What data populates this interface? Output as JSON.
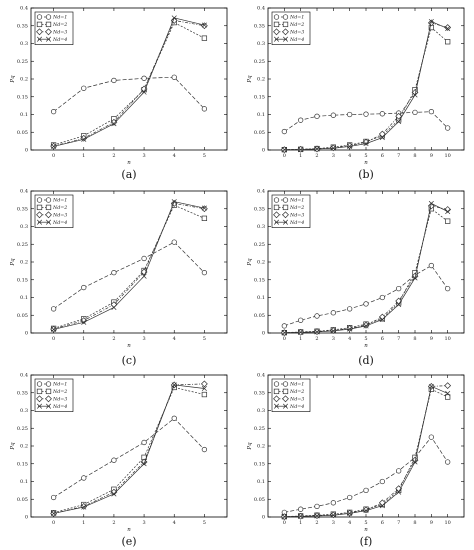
{
  "chart_data": [
    {
      "id": "a",
      "caption": "(a)",
      "type": "line",
      "xlabel": "n",
      "ylabel": "Pq",
      "x": [
        0,
        1,
        2,
        3,
        4,
        5
      ],
      "xticks": [
        "0",
        "1",
        "2",
        "3",
        "4",
        "5"
      ],
      "ylim": [
        0,
        0.4
      ],
      "yticks": [
        "0",
        "0.05",
        "0.1",
        "0.15",
        "0.2",
        "0.25",
        "0.3",
        "0.35",
        "0.4"
      ],
      "legend_position": "top-left",
      "series": [
        {
          "name": "Nd=1",
          "marker": "circle",
          "dash": "4,2",
          "values": [
            0.108,
            0.174,
            0.196,
            0.202,
            0.205,
            0.116
          ]
        },
        {
          "name": "Nd=2",
          "marker": "square",
          "dash": "2,1.5",
          "values": [
            0.014,
            0.04,
            0.088,
            0.17,
            0.359,
            0.315
          ]
        },
        {
          "name": "Nd=3",
          "marker": "diamond",
          "dash": "3,1.5,1,1.5",
          "values": [
            0.011,
            0.033,
            0.078,
            0.172,
            0.365,
            0.35
          ]
        },
        {
          "name": "Nd=4",
          "marker": "x",
          "dash": "",
          "values": [
            0.01,
            0.03,
            0.074,
            0.163,
            0.372,
            0.352
          ]
        }
      ]
    },
    {
      "id": "b",
      "caption": "(b)",
      "type": "line",
      "xlabel": "n",
      "ylabel": "Pq",
      "x": [
        0,
        1,
        2,
        3,
        4,
        5,
        6,
        7,
        8,
        9,
        10
      ],
      "xticks": [
        "0",
        "1",
        "2",
        "3",
        "4",
        "5",
        "6",
        "7",
        "8",
        "9",
        "10"
      ],
      "ylim": [
        0,
        0.4
      ],
      "yticks": [
        "0",
        "0.05",
        "0.1",
        "0.15",
        "0.2",
        "0.25",
        "0.3",
        "0.35",
        "0.4"
      ],
      "legend_position": "top-left",
      "series": [
        {
          "name": "Nd=1",
          "marker": "circle",
          "dash": "4,2",
          "values": [
            0.052,
            0.084,
            0.095,
            0.098,
            0.1,
            0.101,
            0.102,
            0.104,
            0.106,
            0.108,
            0.062
          ]
        },
        {
          "name": "Nd=2",
          "marker": "square",
          "dash": "2,1.5",
          "values": [
            0.001,
            0.002,
            0.004,
            0.008,
            0.014,
            0.024,
            0.04,
            0.085,
            0.17,
            0.345,
            0.305
          ]
        },
        {
          "name": "Nd=3",
          "marker": "diamond",
          "dash": "3,1.5,1,1.5",
          "values": [
            0.001,
            0.002,
            0.003,
            0.006,
            0.012,
            0.022,
            0.045,
            0.095,
            0.162,
            0.358,
            0.345
          ]
        },
        {
          "name": "Nd=4",
          "marker": "x",
          "dash": "",
          "values": [
            0.001,
            0.001,
            0.003,
            0.005,
            0.01,
            0.018,
            0.035,
            0.08,
            0.155,
            0.362,
            0.342
          ]
        }
      ]
    },
    {
      "id": "c",
      "caption": "(c)",
      "type": "line",
      "xlabel": "n",
      "ylabel": "Pq",
      "x": [
        0,
        1,
        2,
        3,
        4,
        5
      ],
      "xticks": [
        "0",
        "1",
        "2",
        "3",
        "4",
        "5"
      ],
      "ylim": [
        0,
        0.4
      ],
      "yticks": [
        "0",
        "0.05",
        "0.1",
        "0.15",
        "0.2",
        "0.25",
        "0.3",
        "0.35",
        "0.4"
      ],
      "legend_position": "top-left",
      "series": [
        {
          "name": "Nd=1",
          "marker": "circle",
          "dash": "4,2",
          "values": [
            0.068,
            0.128,
            0.17,
            0.21,
            0.256,
            0.17
          ]
        },
        {
          "name": "Nd=2",
          "marker": "square",
          "dash": "2,1.5",
          "values": [
            0.013,
            0.04,
            0.087,
            0.176,
            0.36,
            0.323
          ]
        },
        {
          "name": "Nd=3",
          "marker": "diamond",
          "dash": "3,1.5,1,1.5",
          "values": [
            0.011,
            0.035,
            0.08,
            0.172,
            0.365,
            0.35
          ]
        },
        {
          "name": "Nd=4",
          "marker": "x",
          "dash": "",
          "values": [
            0.01,
            0.03,
            0.072,
            0.16,
            0.37,
            0.352
          ]
        }
      ]
    },
    {
      "id": "d",
      "caption": "(d)",
      "type": "line",
      "xlabel": "n",
      "ylabel": "Pq",
      "x": [
        0,
        1,
        2,
        3,
        4,
        5,
        6,
        7,
        8,
        9,
        10
      ],
      "xticks": [
        "0",
        "1",
        "2",
        "3",
        "4",
        "5",
        "6",
        "7",
        "8",
        "9",
        "10"
      ],
      "ylim": [
        0,
        0.4
      ],
      "yticks": [
        "0",
        "0.05",
        "0.1",
        "0.15",
        "0.2",
        "0.25",
        "0.3",
        "0.35",
        "0.4"
      ],
      "legend_position": "top-left",
      "series": [
        {
          "name": "Nd=1",
          "marker": "circle",
          "dash": "4,2",
          "values": [
            0.02,
            0.036,
            0.048,
            0.057,
            0.068,
            0.082,
            0.1,
            0.125,
            0.163,
            0.19,
            0.125
          ]
        },
        {
          "name": "Nd=2",
          "marker": "square",
          "dash": "2,1.5",
          "values": [
            0.001,
            0.003,
            0.005,
            0.009,
            0.015,
            0.025,
            0.04,
            0.085,
            0.17,
            0.35,
            0.315
          ]
        },
        {
          "name": "Nd=3",
          "marker": "diamond",
          "dash": "3,1.5,1,1.5",
          "values": [
            0.001,
            0.002,
            0.004,
            0.007,
            0.013,
            0.022,
            0.045,
            0.09,
            0.16,
            0.358,
            0.348
          ]
        },
        {
          "name": "Nd=4",
          "marker": "x",
          "dash": "",
          "values": [
            0.001,
            0.002,
            0.003,
            0.006,
            0.011,
            0.02,
            0.038,
            0.08,
            0.155,
            0.365,
            0.342
          ]
        }
      ]
    },
    {
      "id": "e",
      "caption": "(e)",
      "type": "line",
      "xlabel": "n",
      "ylabel": "Pq",
      "x": [
        0,
        1,
        2,
        3,
        4,
        5
      ],
      "xticks": [
        "0",
        "1",
        "2",
        "3",
        "4",
        "5"
      ],
      "ylim": [
        0,
        0.4
      ],
      "yticks": [
        "0",
        "0.05",
        "0.1",
        "0.15",
        "0.2",
        "0.25",
        "0.3",
        "0.35",
        "0.4"
      ],
      "legend_position": "top-left",
      "series": [
        {
          "name": "Nd=1",
          "marker": "circle",
          "dash": "4,2",
          "values": [
            0.055,
            0.11,
            0.16,
            0.21,
            0.278,
            0.19
          ]
        },
        {
          "name": "Nd=2",
          "marker": "square",
          "dash": "2,1.5",
          "values": [
            0.012,
            0.035,
            0.078,
            0.168,
            0.365,
            0.345
          ]
        },
        {
          "name": "Nd=3",
          "marker": "diamond",
          "dash": "3,1.5,1,1.5",
          "values": [
            0.01,
            0.03,
            0.07,
            0.155,
            0.372,
            0.375
          ]
        },
        {
          "name": "Nd=4",
          "marker": "x",
          "dash": "",
          "values": [
            0.01,
            0.028,
            0.065,
            0.15,
            0.372,
            0.362
          ]
        }
      ]
    },
    {
      "id": "f",
      "caption": "(f)",
      "type": "line",
      "xlabel": "n",
      "ylabel": "Pq",
      "x": [
        0,
        1,
        2,
        3,
        4,
        5,
        6,
        7,
        8,
        9,
        10
      ],
      "xticks": [
        "0",
        "1",
        "2",
        "3",
        "4",
        "5",
        "6",
        "7",
        "8",
        "9",
        "10"
      ],
      "ylim": [
        0,
        0.4
      ],
      "yticks": [
        "0",
        "0.05",
        "0.1",
        "0.15",
        "0.2",
        "0.25",
        "0.3",
        "0.35",
        "0.4"
      ],
      "legend_position": "top-left",
      "series": [
        {
          "name": "Nd=1",
          "marker": "circle",
          "dash": "4,2",
          "values": [
            0.013,
            0.022,
            0.03,
            0.04,
            0.055,
            0.075,
            0.1,
            0.13,
            0.168,
            0.225,
            0.155
          ]
        },
        {
          "name": "Nd=2",
          "marker": "square",
          "dash": "2,1.5",
          "values": [
            0.001,
            0.003,
            0.005,
            0.008,
            0.013,
            0.022,
            0.035,
            0.075,
            0.168,
            0.36,
            0.338
          ]
        },
        {
          "name": "Nd=3",
          "marker": "diamond",
          "dash": "3,1.5,1,1.5",
          "values": [
            0.001,
            0.002,
            0.004,
            0.006,
            0.011,
            0.02,
            0.04,
            0.08,
            0.16,
            0.368,
            0.37
          ]
        },
        {
          "name": "Nd=4",
          "marker": "x",
          "dash": "",
          "values": [
            0.001,
            0.002,
            0.003,
            0.005,
            0.01,
            0.018,
            0.032,
            0.07,
            0.155,
            0.368,
            0.348
          ]
        }
      ]
    }
  ]
}
